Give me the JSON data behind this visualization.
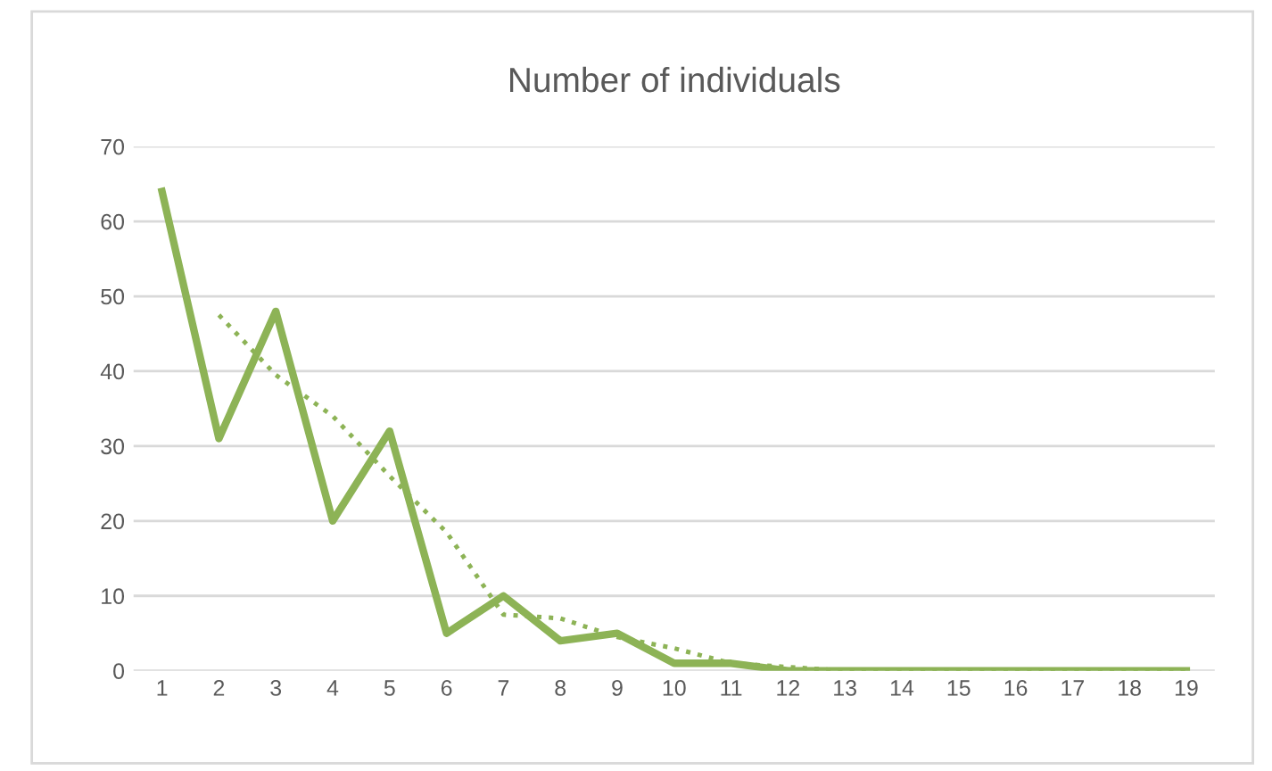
{
  "chart_data": {
    "type": "line",
    "title": "Number of individuals",
    "categories": [
      "1",
      "2",
      "3",
      "4",
      "5",
      "6",
      "7",
      "8",
      "9",
      "10",
      "11",
      "12",
      "13",
      "14",
      "15",
      "16",
      "17",
      "18",
      "19"
    ],
    "series": [
      {
        "color": "#8db356",
        "line_style": "solid",
        "values": [
          64,
          31,
          48,
          20,
          32,
          5,
          10,
          4,
          5,
          1,
          1,
          0,
          0,
          0,
          0,
          0,
          0,
          0,
          0
        ]
      },
      {
        "type": "line",
        "color": "#8db356",
        "line_style": "dotted",
        "values": [
          null,
          47.5,
          39.5,
          34,
          26,
          18.5,
          7.5,
          7,
          4.5,
          3,
          1,
          0.5,
          0,
          0,
          0,
          0,
          0,
          0,
          0
        ]
      }
    ],
    "ylim": [
      0,
      70
    ],
    "yticks": [
      0,
      10,
      20,
      30,
      40,
      50,
      60,
      70
    ],
    "grid": "y",
    "marker": "none",
    "legend": false
  }
}
